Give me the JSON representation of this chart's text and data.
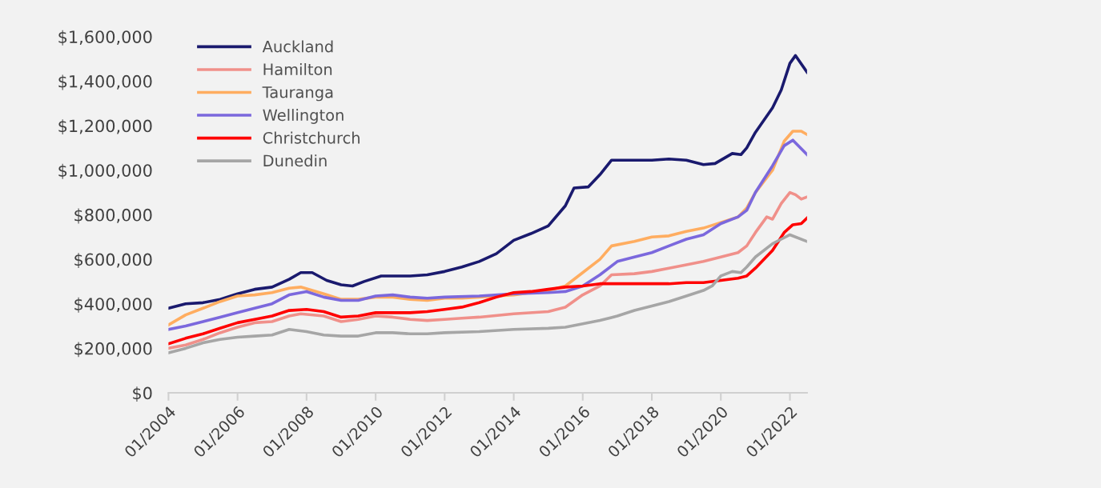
{
  "chart_data": {
    "type": "line",
    "legend": "top left",
    "grid": false,
    "marker": "none",
    "line_style": "solid",
    "xlim": [
      "2004-01",
      "2022-07"
    ],
    "xticks": [
      {
        "value": "2004-01",
        "label": "01/2004"
      },
      {
        "value": "2006-01",
        "label": "01/2006"
      },
      {
        "value": "2008-01",
        "label": "01/2008"
      },
      {
        "value": "2010-01",
        "label": "01/2010"
      },
      {
        "value": "2012-01",
        "label": "01/2012"
      },
      {
        "value": "2014-01",
        "label": "01/2014"
      },
      {
        "value": "2016-01",
        "label": "01/2016"
      },
      {
        "value": "2018-01",
        "label": "01/2018"
      },
      {
        "value": "2020-01",
        "label": "01/2020"
      },
      {
        "value": "2022-01",
        "label": "01/2022"
      }
    ],
    "ylim": [
      0,
      1600000
    ],
    "yticks": [
      {
        "value": 0,
        "label": "$0"
      },
      {
        "value": 200000,
        "label": "$200,000"
      },
      {
        "value": 400000,
        "label": "$400,000"
      },
      {
        "value": 600000,
        "label": "$600,000"
      },
      {
        "value": 800000,
        "label": "$800,000"
      },
      {
        "value": 1000000,
        "label": "$1,000,000"
      },
      {
        "value": 1200000,
        "label": "$1,200,000"
      },
      {
        "value": 1400000,
        "label": "$1,400,000"
      },
      {
        "value": 1600000,
        "label": "$1,600,000"
      }
    ],
    "series": [
      {
        "name": "Auckland",
        "color": "#1a1a6e",
        "x": [
          "2004-01",
          "2004-07",
          "2005-01",
          "2005-07",
          "2006-01",
          "2006-07",
          "2007-01",
          "2007-07",
          "2007-11",
          "2008-03",
          "2008-08",
          "2009-01",
          "2009-05",
          "2009-09",
          "2010-03",
          "2010-07",
          "2011-01",
          "2011-07",
          "2012-01",
          "2012-07",
          "2013-01",
          "2013-07",
          "2014-01",
          "2014-07",
          "2015-01",
          "2015-07",
          "2015-10",
          "2016-03",
          "2016-07",
          "2016-11",
          "2017-07",
          "2018-01",
          "2018-07",
          "2019-01",
          "2019-07",
          "2019-11",
          "2020-05",
          "2020-08",
          "2020-10",
          "2021-01",
          "2021-07",
          "2021-10",
          "2022-01",
          "2022-03",
          "2022-07"
        ],
        "values": [
          380000,
          400000,
          405000,
          420000,
          445000,
          465000,
          475000,
          510000,
          540000,
          540000,
          505000,
          485000,
          480000,
          500000,
          525000,
          525000,
          525000,
          530000,
          545000,
          565000,
          590000,
          625000,
          685000,
          715000,
          750000,
          840000,
          920000,
          925000,
          980000,
          1045000,
          1045000,
          1045000,
          1050000,
          1045000,
          1025000,
          1030000,
          1075000,
          1070000,
          1100000,
          1170000,
          1280000,
          1360000,
          1480000,
          1515000,
          1440000
        ]
      },
      {
        "name": "Hamilton",
        "color": "#f0908a",
        "x": [
          "2004-01",
          "2004-07",
          "2005-01",
          "2005-07",
          "2006-01",
          "2006-07",
          "2007-01",
          "2007-07",
          "2007-11",
          "2008-07",
          "2009-01",
          "2009-07",
          "2010-01",
          "2010-07",
          "2011-01",
          "2011-07",
          "2012-01",
          "2012-07",
          "2013-01",
          "2014-01",
          "2015-01",
          "2015-07",
          "2016-01",
          "2016-07",
          "2016-11",
          "2017-07",
          "2018-01",
          "2018-07",
          "2019-01",
          "2019-07",
          "2020-01",
          "2020-07",
          "2020-10",
          "2021-01",
          "2021-05",
          "2021-07",
          "2021-10",
          "2022-01",
          "2022-03",
          "2022-05",
          "2022-07"
        ],
        "values": [
          200000,
          215000,
          240000,
          270000,
          295000,
          315000,
          320000,
          345000,
          355000,
          345000,
          320000,
          330000,
          345000,
          340000,
          330000,
          325000,
          330000,
          335000,
          340000,
          355000,
          365000,
          385000,
          440000,
          480000,
          530000,
          535000,
          545000,
          560000,
          575000,
          590000,
          610000,
          630000,
          660000,
          720000,
          790000,
          780000,
          850000,
          900000,
          890000,
          870000,
          880000
        ]
      },
      {
        "name": "Tauranga",
        "color": "#ffad60",
        "x": [
          "2004-01",
          "2004-07",
          "2005-01",
          "2005-07",
          "2006-01",
          "2006-07",
          "2007-01",
          "2007-07",
          "2007-11",
          "2008-07",
          "2009-01",
          "2009-07",
          "2010-01",
          "2010-07",
          "2011-01",
          "2011-07",
          "2012-01",
          "2012-07",
          "2013-01",
          "2013-07",
          "2014-01",
          "2014-07",
          "2015-01",
          "2015-07",
          "2016-01",
          "2016-07",
          "2016-11",
          "2017-07",
          "2018-01",
          "2018-07",
          "2019-01",
          "2019-07",
          "2020-01",
          "2020-07",
          "2020-10",
          "2021-01",
          "2021-07",
          "2021-11",
          "2022-02",
          "2022-05",
          "2022-07"
        ],
        "values": [
          305000,
          350000,
          380000,
          410000,
          435000,
          440000,
          450000,
          470000,
          475000,
          445000,
          420000,
          420000,
          430000,
          430000,
          420000,
          415000,
          425000,
          425000,
          430000,
          435000,
          440000,
          450000,
          460000,
          480000,
          540000,
          600000,
          660000,
          680000,
          700000,
          705000,
          725000,
          740000,
          765000,
          790000,
          830000,
          900000,
          1000000,
          1130000,
          1175000,
          1175000,
          1160000
        ]
      },
      {
        "name": "Wellington",
        "color": "#7b68dd",
        "x": [
          "2004-01",
          "2004-07",
          "2005-01",
          "2005-07",
          "2006-01",
          "2006-07",
          "2007-01",
          "2007-07",
          "2008-01",
          "2008-07",
          "2009-01",
          "2009-07",
          "2010-01",
          "2010-07",
          "2011-01",
          "2011-07",
          "2012-01",
          "2013-01",
          "2014-01",
          "2015-01",
          "2015-07",
          "2016-01",
          "2016-07",
          "2017-01",
          "2017-07",
          "2018-01",
          "2018-07",
          "2019-01",
          "2019-07",
          "2020-01",
          "2020-07",
          "2020-10",
          "2021-01",
          "2021-07",
          "2021-11",
          "2022-02",
          "2022-07"
        ],
        "values": [
          285000,
          300000,
          320000,
          340000,
          360000,
          380000,
          400000,
          440000,
          455000,
          430000,
          415000,
          415000,
          435000,
          440000,
          430000,
          425000,
          430000,
          435000,
          445000,
          450000,
          455000,
          480000,
          530000,
          590000,
          610000,
          630000,
          660000,
          690000,
          710000,
          760000,
          790000,
          820000,
          900000,
          1020000,
          1110000,
          1135000,
          1070000
        ]
      },
      {
        "name": "Christchurch",
        "color": "#ff0000",
        "x": [
          "2004-01",
          "2004-07",
          "2005-01",
          "2005-07",
          "2006-01",
          "2006-07",
          "2007-01",
          "2007-07",
          "2008-01",
          "2008-07",
          "2009-01",
          "2009-07",
          "2010-01",
          "2010-07",
          "2011-01",
          "2011-07",
          "2012-01",
          "2012-07",
          "2013-01",
          "2013-07",
          "2014-01",
          "2014-07",
          "2015-01",
          "2015-07",
          "2016-01",
          "2016-07",
          "2017-01",
          "2017-07",
          "2018-01",
          "2018-07",
          "2019-01",
          "2019-07",
          "2020-01",
          "2020-07",
          "2020-10",
          "2021-01",
          "2021-07",
          "2021-11",
          "2022-02",
          "2022-05",
          "2022-07"
        ],
        "values": [
          220000,
          245000,
          265000,
          290000,
          315000,
          330000,
          345000,
          370000,
          375000,
          365000,
          340000,
          345000,
          360000,
          360000,
          360000,
          365000,
          375000,
          385000,
          405000,
          430000,
          450000,
          455000,
          465000,
          475000,
          480000,
          490000,
          490000,
          490000,
          490000,
          490000,
          495000,
          495000,
          505000,
          515000,
          525000,
          560000,
          640000,
          720000,
          755000,
          760000,
          785000
        ]
      },
      {
        "name": "Dunedin",
        "color": "#a6a6a6",
        "x": [
          "2004-01",
          "2004-07",
          "2005-01",
          "2005-07",
          "2006-01",
          "2006-07",
          "2007-01",
          "2007-07",
          "2008-01",
          "2008-07",
          "2009-01",
          "2009-07",
          "2010-01",
          "2010-07",
          "2011-01",
          "2011-07",
          "2012-01",
          "2013-01",
          "2014-01",
          "2015-01",
          "2015-07",
          "2016-01",
          "2016-07",
          "2017-01",
          "2017-07",
          "2018-01",
          "2018-07",
          "2019-01",
          "2019-07",
          "2019-10",
          "2020-01",
          "2020-05",
          "2020-08",
          "2020-10",
          "2021-01",
          "2021-07",
          "2021-10",
          "2022-01",
          "2022-07"
        ],
        "values": [
          180000,
          200000,
          225000,
          240000,
          250000,
          255000,
          260000,
          285000,
          275000,
          260000,
          255000,
          255000,
          270000,
          270000,
          265000,
          265000,
          270000,
          275000,
          285000,
          290000,
          295000,
          310000,
          325000,
          345000,
          370000,
          390000,
          410000,
          435000,
          460000,
          480000,
          525000,
          545000,
          540000,
          565000,
          610000,
          670000,
          690000,
          710000,
          680000
        ]
      }
    ]
  }
}
